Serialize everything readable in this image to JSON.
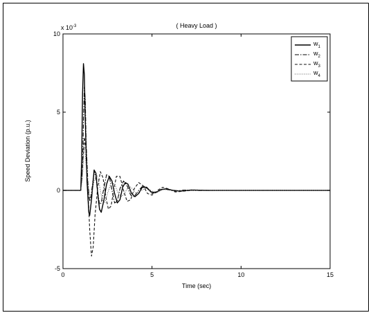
{
  "chart_data": {
    "type": "line",
    "title": "( Heavy Load )",
    "xlabel": "Time (sec)",
    "ylabel": "Speed Deviation (p.u.)",
    "xlim": [
      0,
      15
    ],
    "ylim": [
      -5,
      10
    ],
    "y_exponent_base": "x 10",
    "y_exponent_power": "-3",
    "xticks": [
      "0",
      "5",
      "10",
      "15"
    ],
    "yticks": [
      "-5",
      "0",
      "5",
      "10"
    ],
    "grid": false,
    "legend_position": "top-right",
    "legend": [
      {
        "base": "w",
        "sub": "1",
        "style": "solid"
      },
      {
        "base": "w",
        "sub": "2",
        "style": "dashdot"
      },
      {
        "base": "w",
        "sub": "3",
        "style": "dashed"
      },
      {
        "base": "w",
        "sub": "4",
        "style": "dotted"
      }
    ],
    "series": [
      {
        "style": "solid",
        "x": [
          0,
          1.0,
          1.05,
          1.1,
          1.15,
          1.2,
          1.25,
          1.35,
          1.45,
          1.5,
          1.6,
          1.75,
          1.85,
          1.95,
          2.05,
          2.15,
          2.3,
          2.45,
          2.6,
          2.75,
          2.9,
          3.05,
          3.2,
          3.35,
          3.5,
          3.65,
          3.85,
          4.05,
          4.25,
          4.45,
          4.7,
          4.95,
          5.2,
          5.5,
          5.8,
          6.2,
          6.6,
          7.2,
          8,
          15
        ],
        "y": [
          0,
          0,
          2.0,
          6.2,
          8.1,
          7.4,
          4.5,
          0.6,
          -1.4,
          -1.6,
          -0.6,
          1.3,
          1.1,
          -0.2,
          -1.2,
          -1.4,
          -0.6,
          0.4,
          0.9,
          0.6,
          -0.2,
          -0.8,
          -0.6,
          0.2,
          0.5,
          0.4,
          -0.2,
          -0.4,
          -0.2,
          0.2,
          0.2,
          -0.1,
          -0.15,
          0.05,
          0.1,
          0,
          -0.05,
          0.02,
          0,
          0
        ]
      },
      {
        "style": "dashdot",
        "x": [
          0,
          1.0,
          1.1,
          1.15,
          1.2,
          1.25,
          1.3,
          1.4,
          1.5,
          1.55,
          1.65,
          1.75,
          1.85,
          1.95,
          2.05,
          2.15,
          2.3,
          2.45,
          2.6,
          2.75,
          2.9,
          3.05,
          3.2,
          3.4,
          3.6,
          3.8,
          4.0,
          4.25,
          4.5,
          4.75,
          5.0,
          5.3,
          5.6,
          5.9,
          6.3,
          6.8,
          7.5,
          8.5,
          15
        ],
        "y": [
          0,
          0,
          1.5,
          4.5,
          6.6,
          5.8,
          3.0,
          0.5,
          -0.7,
          -0.5,
          0.3,
          1.2,
          0.8,
          -0.1,
          -0.9,
          -0.8,
          0.2,
          1.0,
          0.9,
          0.0,
          -0.8,
          -0.7,
          0.1,
          0.6,
          0.3,
          -0.3,
          -0.4,
          0.0,
          0.3,
          0.1,
          -0.2,
          -0.1,
          0.1,
          0.05,
          -0.05,
          0.02,
          -0.01,
          0,
          0
        ]
      },
      {
        "style": "dashed",
        "x": [
          0,
          1.0,
          1.1,
          1.2,
          1.3,
          1.4,
          1.5,
          1.6,
          1.7,
          1.8,
          1.95,
          2.1,
          2.25,
          2.4,
          2.55,
          2.7,
          2.85,
          3.0,
          3.2,
          3.4,
          3.6,
          3.8,
          4.0,
          4.25,
          4.5,
          4.75,
          5.0,
          5.3,
          5.6,
          5.9,
          6.3,
          6.8,
          7.4,
          8.2,
          15
        ],
        "y": [
          0,
          0,
          1.5,
          3.4,
          2.5,
          0.2,
          -2.5,
          -4.2,
          -3.6,
          -1.6,
          0.2,
          1.2,
          0.8,
          -0.4,
          -1.2,
          -1.0,
          0.0,
          0.9,
          0.9,
          0.0,
          -0.7,
          -0.6,
          0.1,
          0.5,
          0.3,
          -0.2,
          -0.3,
          0.0,
          0.2,
          0.1,
          -0.1,
          -0.05,
          0.03,
          0,
          0
        ]
      },
      {
        "style": "dotted",
        "x": [
          0,
          1.0,
          1.1,
          1.15,
          1.2,
          1.3,
          1.4,
          1.5,
          1.6,
          1.75,
          1.9,
          2.05,
          2.2,
          2.35,
          2.5,
          2.7,
          2.9,
          3.1,
          3.3,
          3.5,
          3.7,
          3.9,
          4.1,
          4.4,
          4.7,
          5.0,
          5.3,
          5.6,
          6.0,
          6.5,
          7.0,
          8.0,
          15
        ],
        "y": [
          0,
          0,
          0.8,
          2.5,
          2.8,
          1.6,
          0.3,
          -0.5,
          -0.3,
          0.6,
          1.0,
          0.3,
          -0.6,
          -0.8,
          -0.2,
          0.5,
          0.4,
          -0.2,
          -0.4,
          -0.1,
          0.3,
          0.1,
          -0.2,
          0.0,
          0.15,
          -0.05,
          -0.1,
          0.05,
          0.04,
          -0.02,
          0.01,
          0,
          0
        ]
      }
    ]
  }
}
